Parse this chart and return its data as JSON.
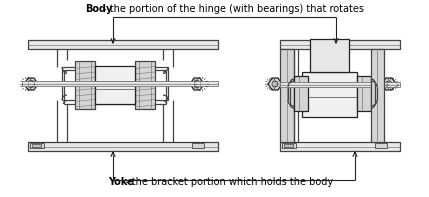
{
  "body_label_bold": "Body",
  "body_label_rest": " - the portion of the hinge (with bearings) that rotates",
  "yoke_label_bold": "Yoke",
  "yoke_label_rest": " - the bracket portion which holds the body",
  "bg_color": "#ffffff",
  "lc": "#444444",
  "dc": "#222222",
  "mg": "#777777",
  "fc_base": "#e8e8e8",
  "fc_mid": "#d4d4d4",
  "fc_dark": "#c0c0c0",
  "fc_light": "#f0f0f0",
  "text_color": "#000000",
  "figsize": [
    4.29,
    1.97
  ],
  "dpi": 100
}
